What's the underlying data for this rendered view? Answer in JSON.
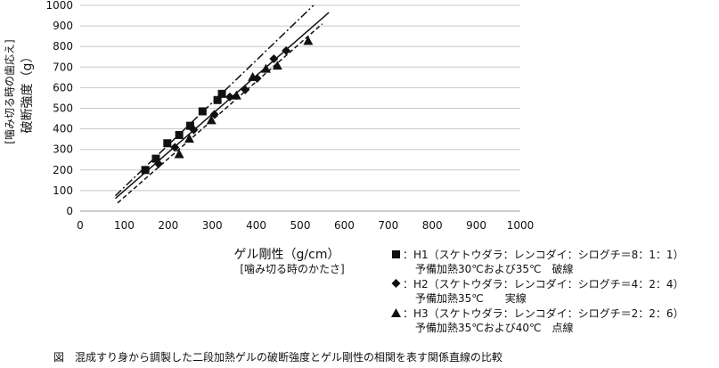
{
  "chart_data": {
    "type": "scatter",
    "xlabel": "ゲル剛性（g/cm）",
    "xlabel_sub": "[噛み切る時のかたさ]",
    "ylabel": "破断強度（g）",
    "ylabel_sub": "[噛み切る時の歯応え]",
    "xlim": [
      0,
      1000
    ],
    "ylim": [
      0,
      1000
    ],
    "x_ticks": [
      "0",
      "100",
      "200",
      "300",
      "400",
      "500",
      "600",
      "700",
      "800",
      "900",
      "1000"
    ],
    "y_ticks": [
      "0",
      "100",
      "200",
      "300",
      "400",
      "500",
      "600",
      "700",
      "800",
      "900",
      "1000"
    ],
    "grid": "horizontal",
    "series": [
      {
        "marker": "square",
        "line_style": "dash-dot",
        "legend_text": "：H1（スケトウダラ：レンコダイ：シログチ＝8：1：1）",
        "legend_detail": "予備加熱30℃および35℃　破線",
        "points": [
          {
            "x": 148,
            "y": 200
          },
          {
            "x": 172,
            "y": 255
          },
          {
            "x": 198,
            "y": 330
          },
          {
            "x": 225,
            "y": 370
          },
          {
            "x": 250,
            "y": 415
          },
          {
            "x": 278,
            "y": 485
          },
          {
            "x": 312,
            "y": 540
          },
          {
            "x": 322,
            "y": 570
          }
        ],
        "fit": [
          {
            "x": 80,
            "y": 75
          },
          {
            "x": 530,
            "y": 1000
          }
        ]
      },
      {
        "marker": "diamond",
        "line_style": "solid",
        "legend_text": "：H2（スケトウダラ：レンコダイ：シログチ＝4：2：4）",
        "legend_detail": "予備加熱35℃　　実線",
        "points": [
          {
            "x": 178,
            "y": 230
          },
          {
            "x": 215,
            "y": 310
          },
          {
            "x": 258,
            "y": 395
          },
          {
            "x": 305,
            "y": 470
          },
          {
            "x": 340,
            "y": 555
          },
          {
            "x": 375,
            "y": 590
          },
          {
            "x": 402,
            "y": 645
          },
          {
            "x": 440,
            "y": 740
          },
          {
            "x": 468,
            "y": 780
          }
        ],
        "fit": [
          {
            "x": 80,
            "y": 62
          },
          {
            "x": 565,
            "y": 965
          }
        ]
      },
      {
        "marker": "triangle",
        "line_style": "dashed",
        "legend_text": "：H3（スケトウダラ：レンコダイ：シログチ＝2：2：6）",
        "legend_detail": "予備加熱35℃および40℃　点線",
        "points": [
          {
            "x": 225,
            "y": 275
          },
          {
            "x": 248,
            "y": 350
          },
          {
            "x": 298,
            "y": 440
          },
          {
            "x": 355,
            "y": 560
          },
          {
            "x": 392,
            "y": 650
          },
          {
            "x": 422,
            "y": 690
          },
          {
            "x": 448,
            "y": 705
          },
          {
            "x": 518,
            "y": 825
          }
        ],
        "fit": [
          {
            "x": 85,
            "y": 40
          },
          {
            "x": 550,
            "y": 910
          }
        ]
      }
    ]
  },
  "caption": "図　混成すり身から調製した二段加熱ゲルの破断強度とゲル剛性の相関を表す関係直線の比較"
}
